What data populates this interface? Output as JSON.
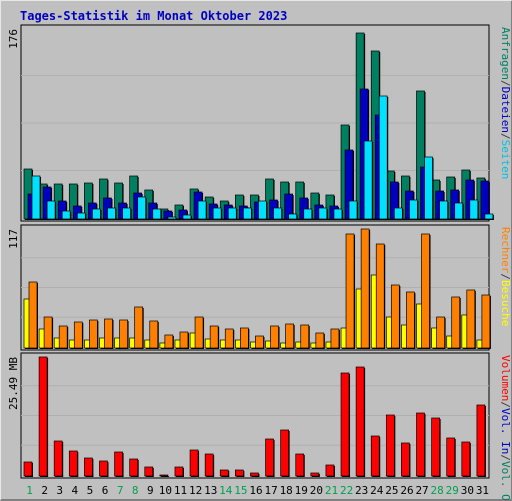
{
  "chart_data": {
    "type": "bar",
    "title": "Tages-Statistik im Monat Oktober 2023",
    "categories": [
      "1",
      "2",
      "3",
      "4",
      "5",
      "6",
      "7",
      "8",
      "9",
      "10",
      "11",
      "12",
      "13",
      "14",
      "15",
      "16",
      "17",
      "18",
      "19",
      "20",
      "21",
      "22",
      "23",
      "24",
      "25",
      "26",
      "27",
      "28",
      "29",
      "30",
      "31"
    ],
    "weekend_days": [
      1,
      7,
      8,
      14,
      15,
      21,
      22,
      28,
      29
    ],
    "panels": [
      {
        "ymax_label": "176",
        "ymax": 176,
        "right_labels": [
          {
            "text": "Anfragen",
            "color": "#008060"
          },
          {
            "text": "/",
            "color": "#404040"
          },
          {
            "text": "Dateien",
            "color": "#0000c0"
          },
          {
            "text": "/",
            "color": "#404040"
          },
          {
            "text": "Seiten",
            "color": "#00c0e0"
          }
        ],
        "series": [
          {
            "name": "Anfragen",
            "color": "#008060",
            "values": [
              46,
              32,
              32,
              32,
              33,
              37,
              33,
              40,
              27,
              9,
              13,
              28,
              20,
              17,
              22,
              22,
              37,
              34,
              34,
              24,
              22,
              87,
              172,
              156,
              44,
              40,
              119,
              36,
              39,
              45,
              38
            ]
          },
          {
            "name": "Dateien",
            "color": "#0000c0",
            "values": [
              23,
              30,
              17,
              12,
              15,
              19,
              15,
              24,
              15,
              7,
              8,
              25,
              14,
              13,
              12,
              16,
              18,
              23,
              19,
              13,
              12,
              64,
              120,
              96,
              34,
              26,
              48,
              26,
              27,
              36,
              35
            ]
          },
          {
            "name": "Seiten",
            "color": "#00e0ff",
            "values": [
              40,
              17,
              7,
              6,
              9,
              10,
              10,
              20,
              9,
              2,
              4,
              17,
              10,
              10,
              10,
              17,
              10,
              5,
              9,
              10,
              9,
              17,
              72,
              114,
              10,
              18,
              57,
              17,
              15,
              18,
              5
            ]
          }
        ]
      },
      {
        "ymax_label": "117",
        "ymax": 117,
        "right_labels": [
          {
            "text": "Rechner",
            "color": "#ff8000"
          },
          {
            "text": "/",
            "color": "#404040"
          },
          {
            "text": "Besuche",
            "color": "#ffff00"
          }
        ],
        "series": [
          {
            "name": "Besuche",
            "color": "#ffff00",
            "values": [
              48,
              19,
              10,
              8,
              8,
              10,
              10,
              10,
              8,
              5,
              8,
              15,
              9,
              8,
              8,
              6,
              7,
              5,
              6,
              5,
              6,
              20,
              58,
              72,
              30,
              23,
              43,
              20,
              12,
              32,
              8
            ]
          },
          {
            "name": "Rechner",
            "color": "#ff8000",
            "values": [
              65,
              30,
              22,
              26,
              28,
              29,
              28,
              40,
              27,
              13,
              16,
              30,
              22,
              19,
              20,
              12,
              22,
              24,
              23,
              15,
              19,
              112,
              117,
              102,
              62,
              55,
              112,
              30,
              50,
              57,
              52
            ]
          }
        ]
      },
      {
        "ymax_label": "25.49 MB",
        "ymax": 25.49,
        "right_labels": [
          {
            "text": "Volumen",
            "color": "#ff0000"
          },
          {
            "text": "/",
            "color": "#404040"
          },
          {
            "text": "Vol. In",
            "color": "#0000c0"
          },
          {
            "text": "/",
            "color": "#404040"
          },
          {
            "text": "Vol. Out",
            "color": "#008060"
          }
        ],
        "series": [
          {
            "name": "Volumen",
            "color": "#ff0000",
            "values": [
              2.9,
              25.4,
              7.6,
              5.4,
              3.8,
              3.2,
              5.2,
              3.6,
              2.0,
              0.3,
              2.0,
              5.6,
              4.8,
              1.3,
              1.3,
              0.7,
              7.9,
              9.8,
              4.8,
              0.6,
              2.4,
              22.0,
              23.4,
              8.5,
              13.0,
              7.0,
              13.5,
              12.5,
              8.1,
              7.2,
              15.2
            ]
          }
        ]
      }
    ]
  }
}
